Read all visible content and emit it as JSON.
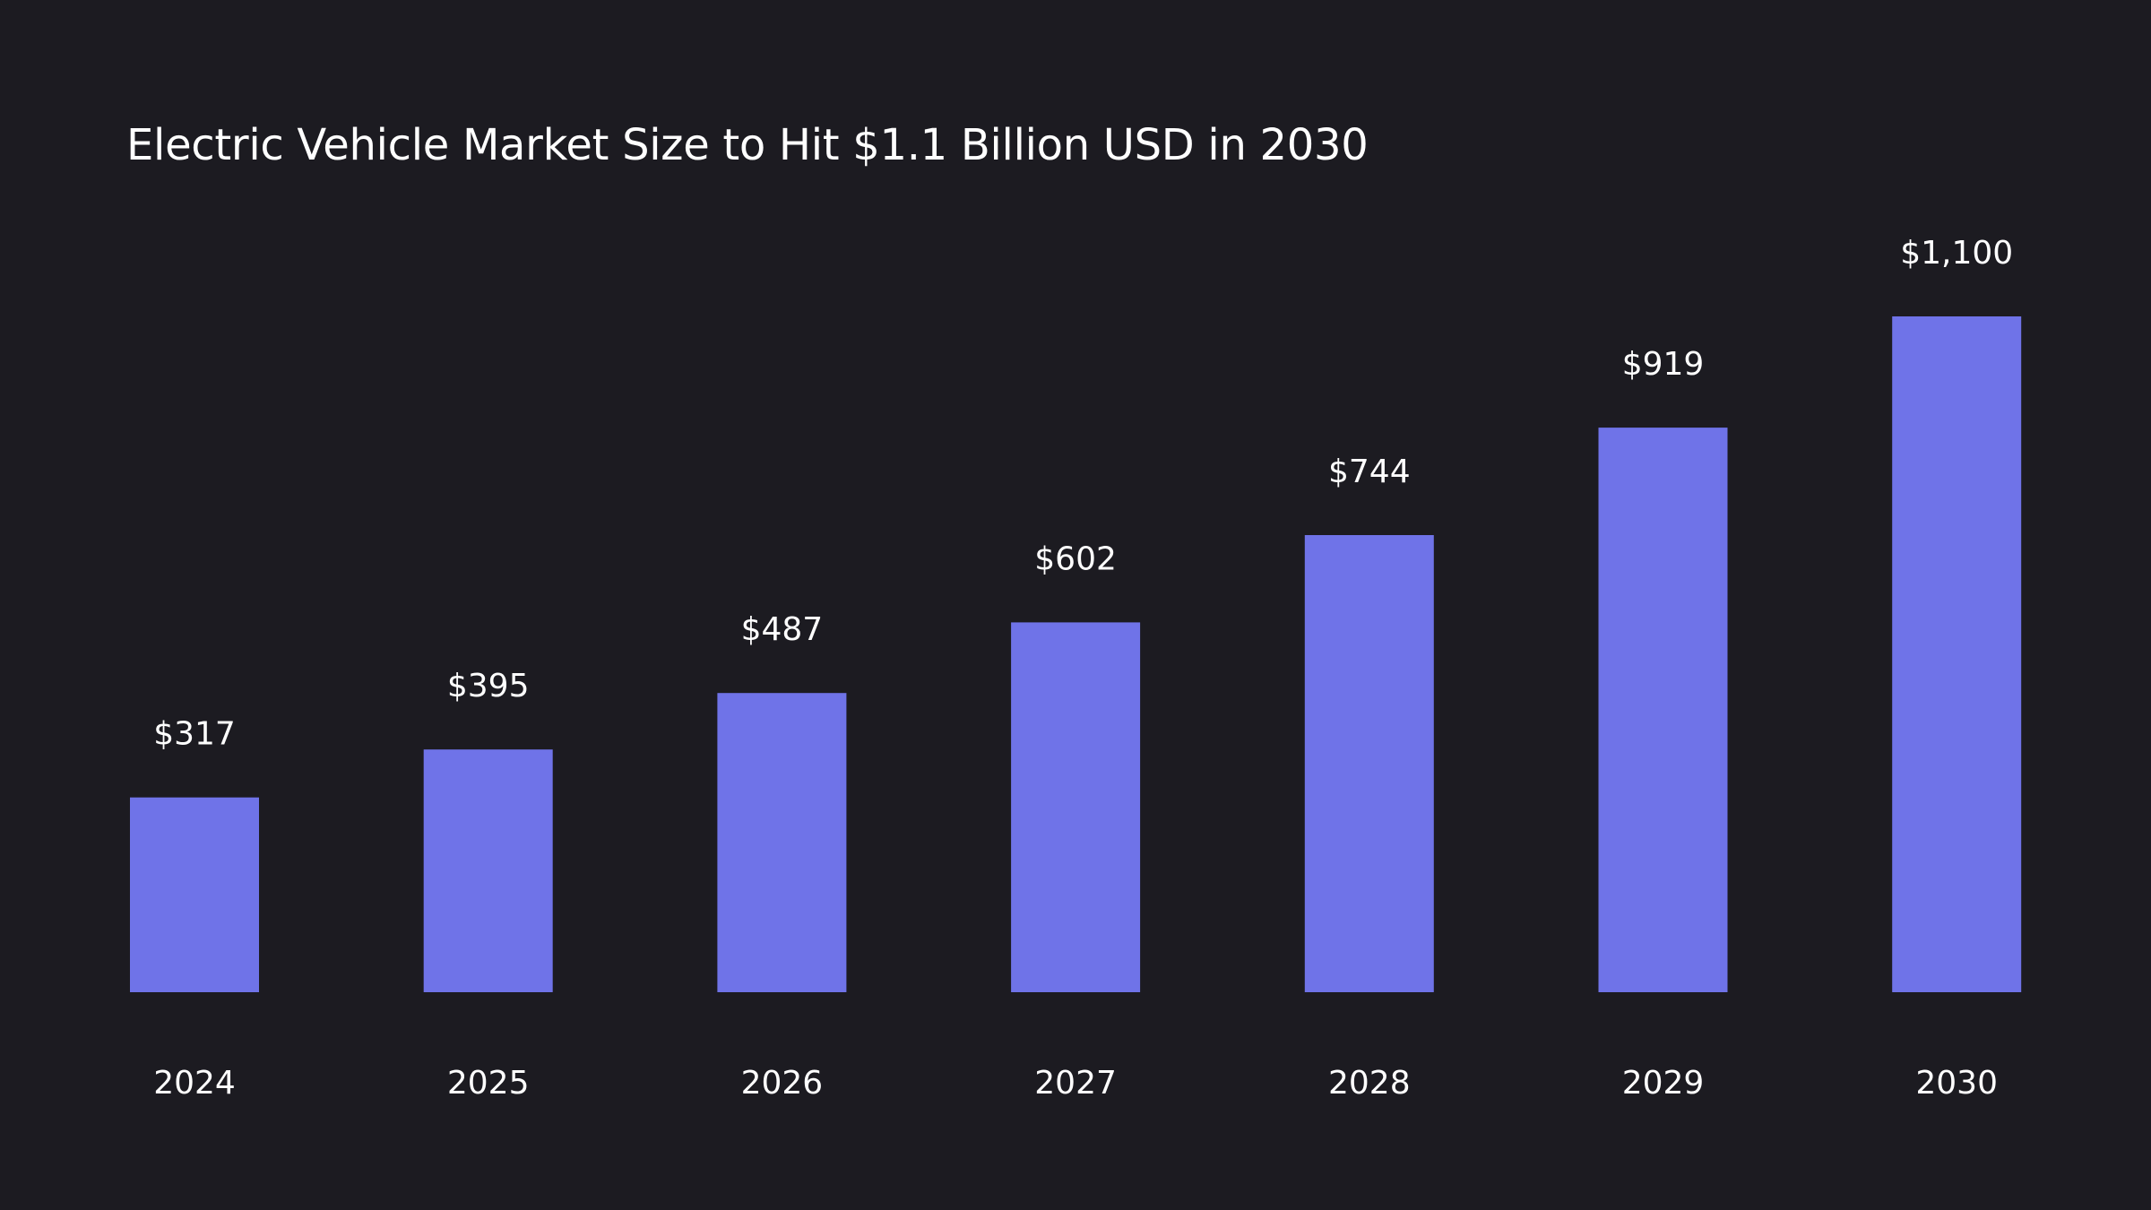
{
  "chart_data": {
    "type": "bar",
    "title": "Electric Vehicle Market Size to Hit $1.1 Billion USD in 2030",
    "categories": [
      "2024",
      "2025",
      "2026",
      "2027",
      "2028",
      "2029",
      "2030"
    ],
    "values": [
      317,
      395,
      487,
      602,
      744,
      919,
      1100
    ],
    "data_labels": [
      "$317",
      "$395",
      "$487",
      "$602",
      "$744",
      "$919",
      "$1,100"
    ],
    "xlabel": "",
    "ylabel": "",
    "ylim": [
      0,
      1100
    ],
    "grid": false,
    "legend": "none",
    "bar_color": "#6f73e8",
    "background_color": "#1c1b21",
    "text_color": "#ffffff"
  }
}
